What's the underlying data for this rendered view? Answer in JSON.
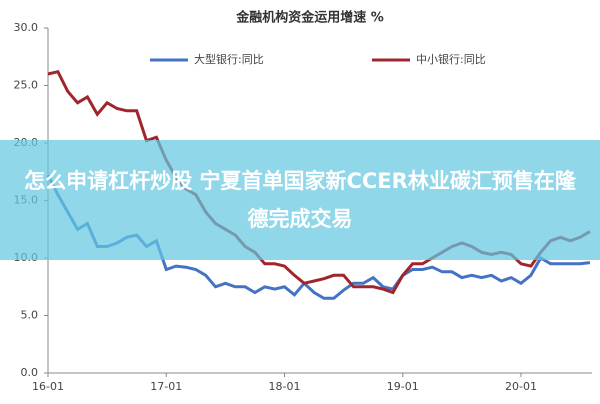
{
  "chart_data": {
    "type": "line",
    "title": "金融机构资金运用增速 %",
    "categories": [
      "16-01",
      null,
      null,
      null,
      null,
      null,
      null,
      null,
      null,
      null,
      null,
      null,
      "17-01",
      null,
      null,
      null,
      null,
      null,
      null,
      null,
      null,
      null,
      null,
      null,
      "18-01",
      null,
      null,
      null,
      null,
      null,
      null,
      null,
      null,
      null,
      null,
      null,
      "19-01",
      null,
      null,
      null,
      null,
      null,
      null,
      null,
      null,
      null,
      null,
      null,
      "20-01",
      null,
      null,
      null,
      null,
      null,
      null,
      null
    ],
    "series": [
      {
        "name": "大型银行:同比",
        "color": "#4472c4",
        "values": [
          17.2,
          15.5,
          14,
          12.5,
          13,
          11,
          11,
          11.3,
          11.8,
          12,
          11,
          11.5,
          9,
          9.3,
          9.2,
          9,
          8.5,
          7.5,
          7.8,
          7.5,
          7.5,
          7,
          7.5,
          7.3,
          7.5,
          6.8,
          7.8,
          7,
          6.5,
          6.5,
          7.2,
          7.8,
          7.8,
          8.3,
          7.5,
          7.3,
          8.5,
          9,
          9,
          9.2,
          8.8,
          8.8,
          8.3,
          8.5,
          8.3,
          8.5,
          8,
          8.3,
          7.8,
          8.5,
          10,
          9.5,
          9.5,
          9.5,
          9.5,
          9.6
        ]
      },
      {
        "name": "中小银行:同比",
        "color": "#a0252c",
        "values": [
          26,
          26.2,
          24.5,
          23.5,
          24,
          22.5,
          23.5,
          23,
          22.8,
          22.8,
          20.2,
          20.5,
          18.5,
          17,
          16,
          15.5,
          14,
          13,
          12.5,
          12,
          11,
          10.5,
          9.5,
          9.5,
          9.3,
          8.5,
          7.8,
          8,
          8.2,
          8.5,
          8.5,
          7.5,
          7.5,
          7.5,
          7.3,
          7,
          8.5,
          9.5,
          9.5,
          10,
          10.5,
          11,
          11.3,
          11,
          10.5,
          10.3,
          10.5,
          10.3,
          9.5,
          9.3,
          10.5,
          11.5,
          11.8,
          11.5,
          11.8,
          12.3
        ]
      }
    ],
    "ylim": [
      0,
      30
    ],
    "yticks": [
      {
        "value": 0,
        "label": "0.0"
      },
      {
        "value": 5,
        "label": "5.0"
      },
      {
        "value": 10,
        "label": "10.0"
      },
      {
        "value": 15,
        "label": "15.0"
      },
      {
        "value": 20,
        "label": "20.0"
      },
      {
        "value": 25,
        "label": "25.0"
      },
      {
        "value": 30,
        "label": "30.0"
      }
    ],
    "legend": "top"
  },
  "overlay_headline": "怎么申请杠杆炒股 宁夏首单国家新CCER林业碳汇预售在隆德完成交易"
}
